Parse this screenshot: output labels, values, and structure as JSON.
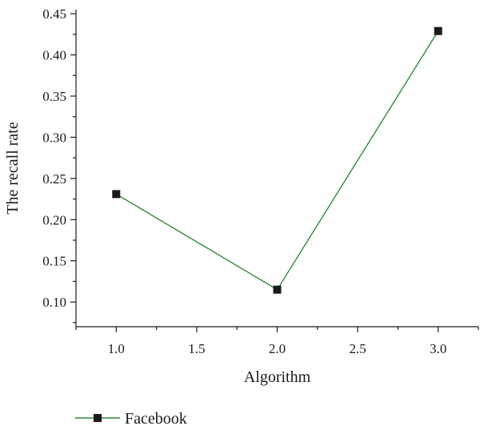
{
  "colors": {
    "series_line": "#2e8b3a",
    "marker": "#1a1a1a",
    "axis": "#1a1a1a"
  },
  "chart_data": {
    "type": "line",
    "title": "",
    "xlabel": "Algorithm",
    "ylabel": "The recall rate",
    "xlim": [
      0.75,
      3.25
    ],
    "ylim": [
      0.07,
      0.455
    ],
    "x_ticks": [
      1.0,
      1.5,
      2.0,
      2.5,
      3.0
    ],
    "x_tick_labels": [
      "1.0",
      "1.5",
      "2.0",
      "2.5",
      "3.0"
    ],
    "y_ticks": [
      0.1,
      0.15,
      0.2,
      0.25,
      0.3,
      0.35,
      0.4,
      0.45
    ],
    "y_tick_labels": [
      "0.10",
      "0.15",
      "0.20",
      "0.25",
      "0.30",
      "0.35",
      "0.40",
      "0.45"
    ],
    "grid": false,
    "legend_position": "bottom-left",
    "series": [
      {
        "name": "Facebook",
        "marker": "square",
        "x": [
          1.0,
          2.0,
          3.0
        ],
        "y": [
          0.231,
          0.115,
          0.429
        ]
      }
    ]
  }
}
